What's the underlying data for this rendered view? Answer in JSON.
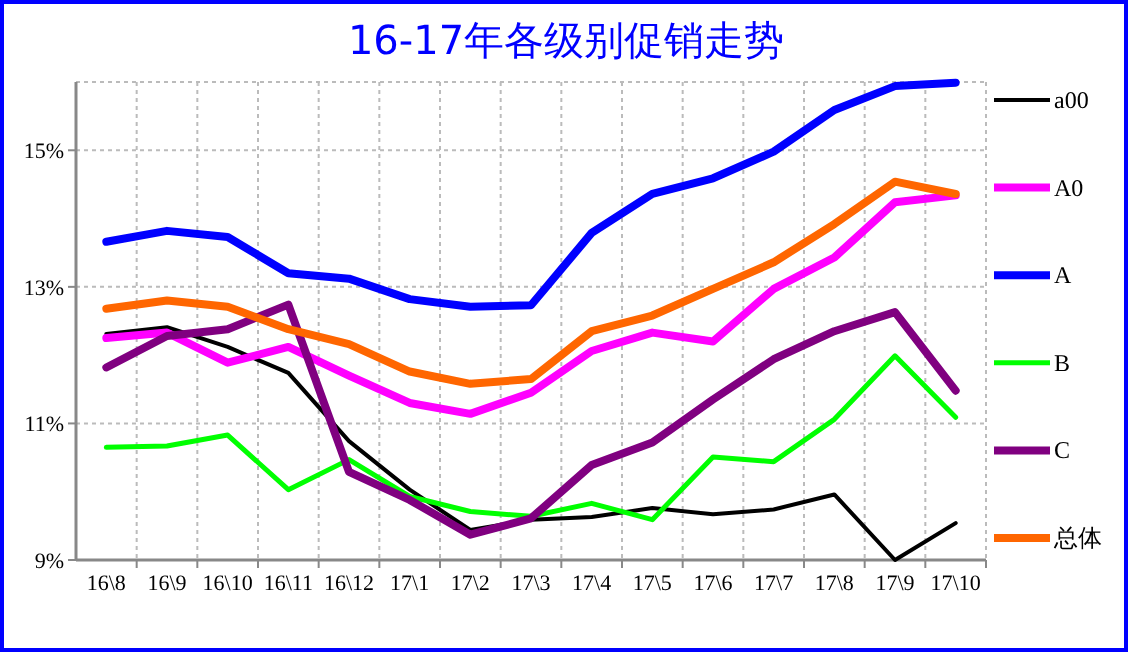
{
  "chart_data": {
    "type": "line",
    "title": "16-17年各级别促销走势",
    "categories": [
      "16\\8",
      "16\\9",
      "16\\10",
      "16\\11",
      "16\\12",
      "17\\1",
      "17\\2",
      "17\\3",
      "17\\4",
      "17\\5",
      "17\\6",
      "17\\7",
      "17\\8",
      "17\\9",
      "17\\10"
    ],
    "series": [
      {
        "name": "a00",
        "color": "#000000",
        "values": [
          12.31,
          12.41,
          12.12,
          11.74,
          10.74,
          10.03,
          9.44,
          9.59,
          9.63,
          9.76,
          9.67,
          9.74,
          9.96,
          9.0,
          9.54
        ]
      },
      {
        "name": "A0",
        "color": "#ff00ff",
        "values": [
          12.25,
          12.33,
          11.89,
          12.12,
          11.7,
          11.3,
          11.14,
          11.45,
          12.06,
          12.33,
          12.2,
          12.97,
          13.43,
          14.24,
          14.34
        ]
      },
      {
        "name": "A",
        "color": "#0000ff",
        "values": [
          13.66,
          13.82,
          13.73,
          13.2,
          13.12,
          12.82,
          12.71,
          12.73,
          13.79,
          14.36,
          14.59,
          14.98,
          15.59,
          15.94,
          15.99
        ]
      },
      {
        "name": "B",
        "color": "#00ff00",
        "values": [
          10.65,
          10.67,
          10.83,
          10.03,
          10.47,
          9.93,
          9.71,
          9.64,
          9.83,
          9.59,
          10.51,
          10.44,
          11.06,
          11.99,
          11.09
        ]
      },
      {
        "name": "C",
        "color": "#800080",
        "values": [
          11.82,
          12.28,
          12.38,
          12.74,
          10.29,
          9.88,
          9.37,
          9.61,
          10.39,
          10.72,
          11.35,
          11.94,
          12.35,
          12.63,
          11.48
        ]
      },
      {
        "name": "总体",
        "color": "#ff6600",
        "values": [
          12.68,
          12.8,
          12.71,
          12.38,
          12.16,
          11.76,
          11.58,
          11.65,
          12.35,
          12.58,
          12.97,
          13.36,
          13.92,
          14.54,
          14.36
        ]
      }
    ],
    "ylim": [
      9,
      16
    ],
    "yticks": [
      {
        "value": 9,
        "label": "9%"
      },
      {
        "value": 11,
        "label": "11%"
      },
      {
        "value": 13,
        "label": "13%"
      },
      {
        "value": 15,
        "label": "15%"
      }
    ],
    "grid": true,
    "legend": "right",
    "marker": "none",
    "line_style": "solid"
  }
}
